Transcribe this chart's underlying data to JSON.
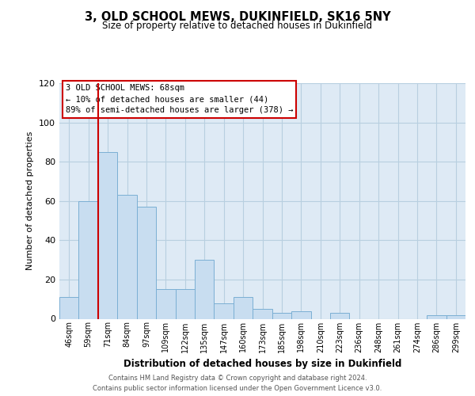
{
  "title": "3, OLD SCHOOL MEWS, DUKINFIELD, SK16 5NY",
  "subtitle": "Size of property relative to detached houses in Dukinfield",
  "xlabel": "Distribution of detached houses by size in Dukinfield",
  "ylabel": "Number of detached properties",
  "categories": [
    "46sqm",
    "59sqm",
    "71sqm",
    "84sqm",
    "97sqm",
    "109sqm",
    "122sqm",
    "135sqm",
    "147sqm",
    "160sqm",
    "173sqm",
    "185sqm",
    "198sqm",
    "210sqm",
    "223sqm",
    "236sqm",
    "248sqm",
    "261sqm",
    "274sqm",
    "286sqm",
    "299sqm"
  ],
  "values": [
    11,
    60,
    85,
    63,
    57,
    15,
    15,
    30,
    8,
    11,
    5,
    3,
    4,
    0,
    3,
    0,
    0,
    0,
    0,
    2,
    2
  ],
  "bar_color": "#c8ddf0",
  "bar_edge_color": "#7bafd4",
  "axes_bg_color": "#deeaf5",
  "marker_line_color": "#cc0000",
  "ylim": [
    0,
    120
  ],
  "yticks": [
    0,
    20,
    40,
    60,
    80,
    100,
    120
  ],
  "annotation_title": "3 OLD SCHOOL MEWS: 68sqm",
  "annotation_line1": "← 10% of detached houses are smaller (44)",
  "annotation_line2": "89% of semi-detached houses are larger (378) →",
  "annotation_box_color": "#ffffff",
  "annotation_box_edge": "#cc0000",
  "footer_line1": "Contains HM Land Registry data © Crown copyright and database right 2024.",
  "footer_line2": "Contains public sector information licensed under the Open Government Licence v3.0.",
  "background_color": "#ffffff",
  "grid_color": "#b8cfe0"
}
